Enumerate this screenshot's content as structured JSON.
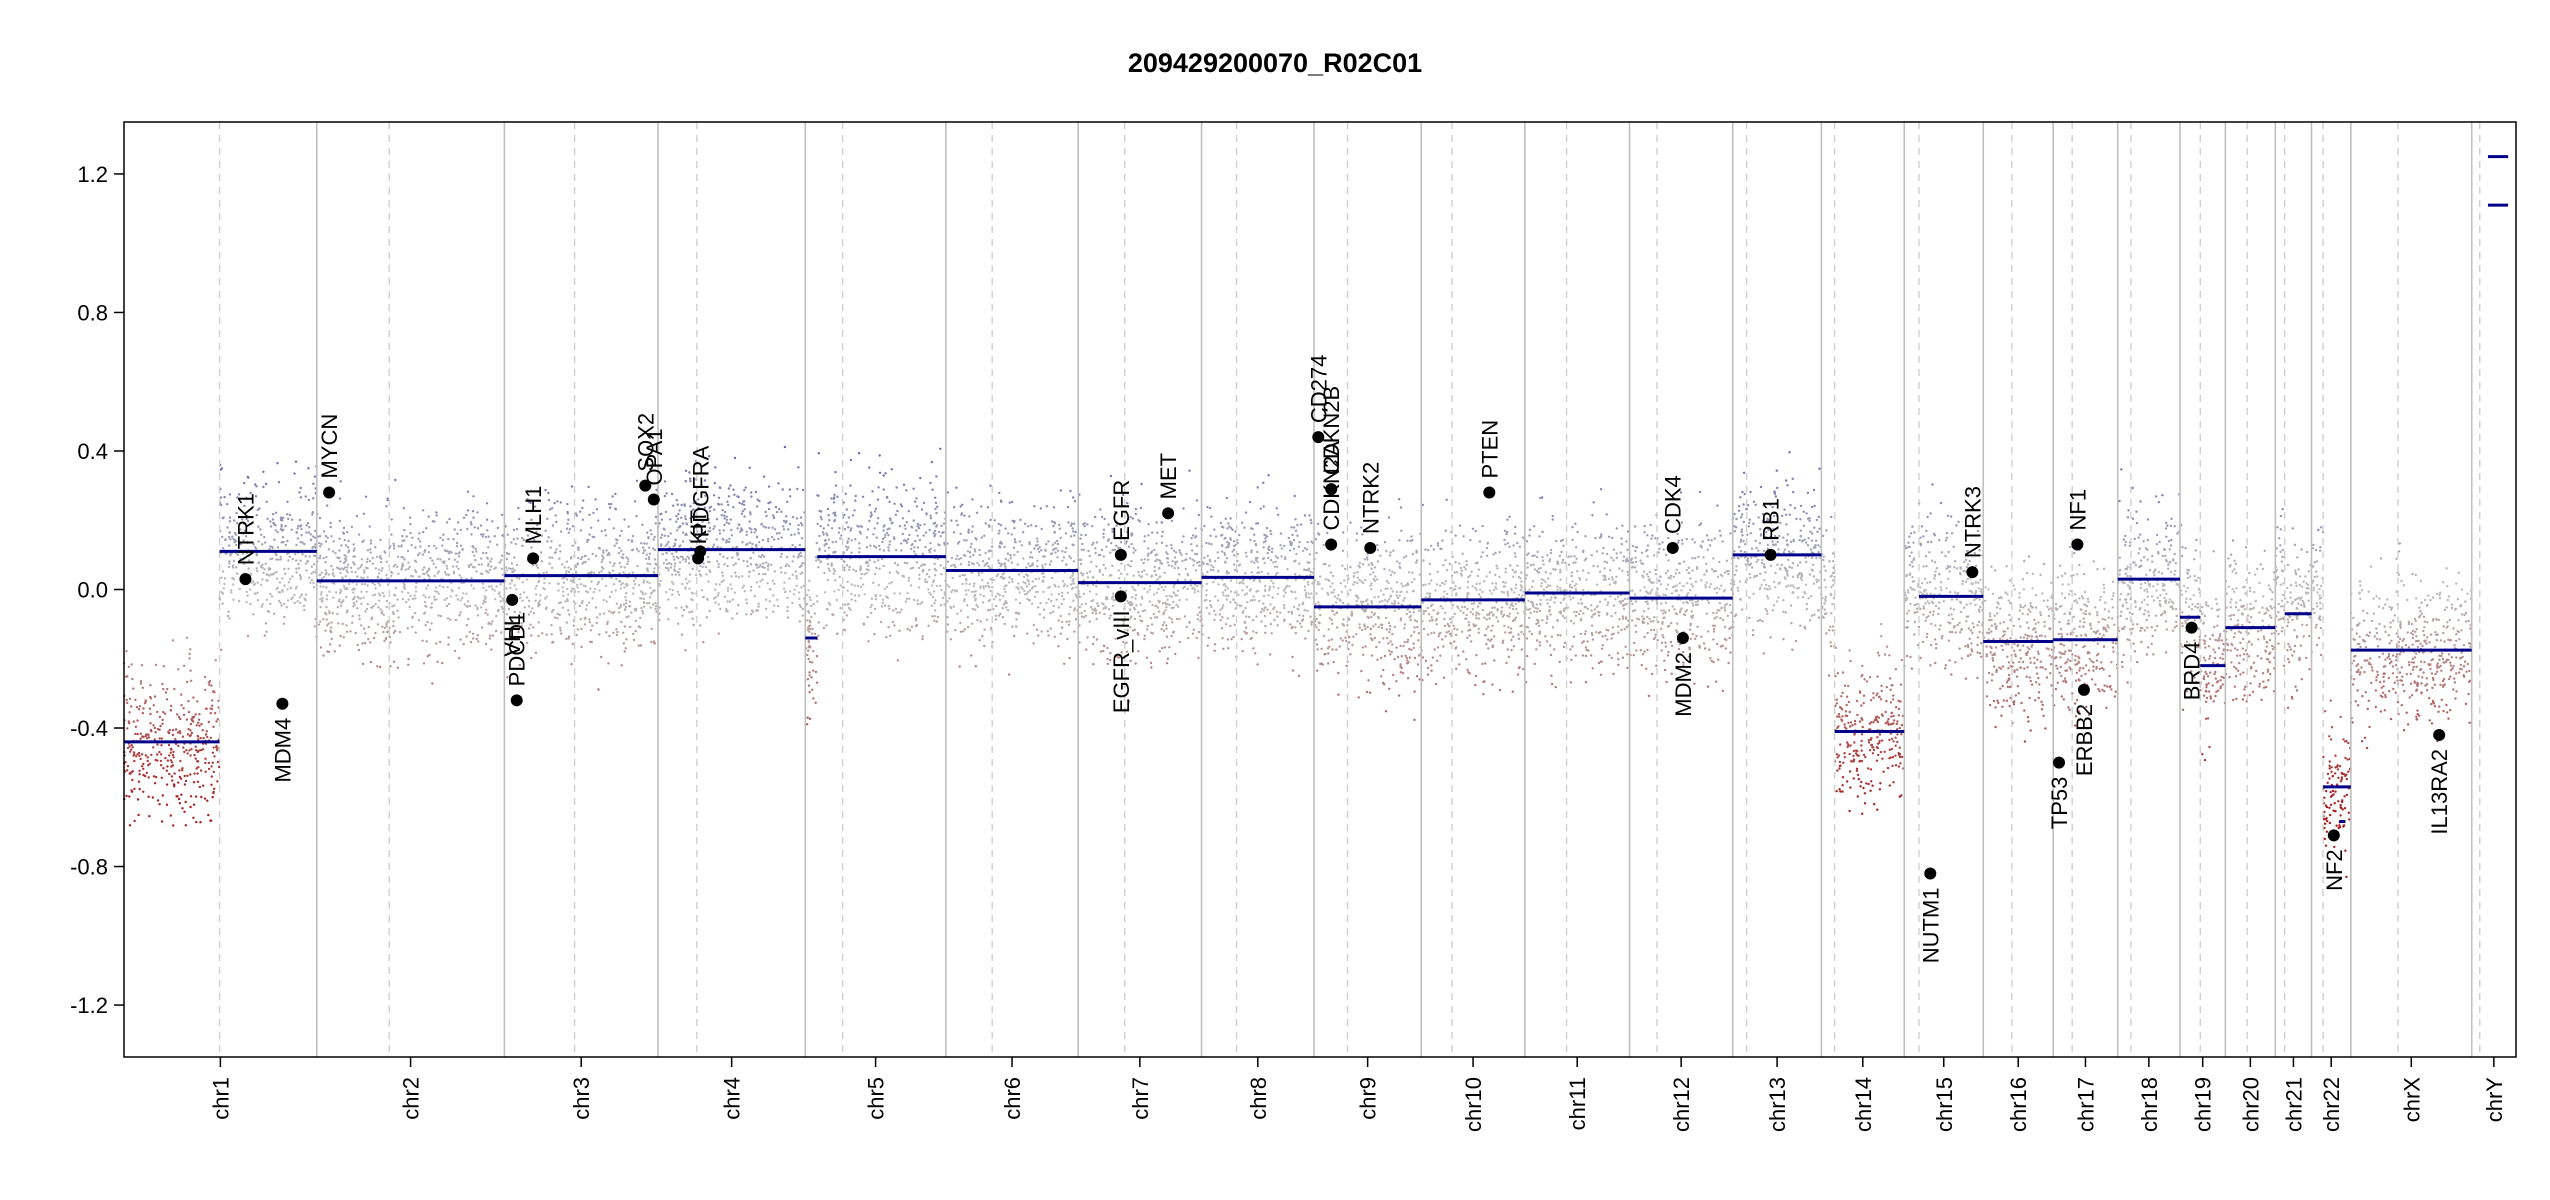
{
  "chart_data": {
    "type": "scatter",
    "title": "209429200070_R02C01",
    "xlabel": "",
    "ylabel": "",
    "ylim": [
      -1.35,
      1.35
    ],
    "y_ticks": [
      -1.2,
      -0.8,
      -0.4,
      0.0,
      0.4,
      0.8,
      1.2
    ],
    "y_tick_labels": [
      "-1.2",
      "-0.8",
      "-0.4",
      "0.0",
      "0.4",
      "0.8",
      "1.2"
    ],
    "grid": false,
    "colors": {
      "gain": "#3a3aa8",
      "neutral": "#bdbdbd",
      "loss": "#a81f1f",
      "segment": "#00008b",
      "chrom_border": "#bfbfbf",
      "centromere": "#cfcfcf"
    },
    "chromosomes": [
      {
        "name": "chr1",
        "start": 0,
        "end": 248.9,
        "centromere": 123.4
      },
      {
        "name": "chr2",
        "start": 248.9,
        "end": 491.1,
        "centromere": 342.5
      },
      {
        "name": "chr3",
        "start": 491.1,
        "end": 689.4,
        "centromere": 581.7
      },
      {
        "name": "chr4",
        "start": 689.4,
        "end": 879.6,
        "centromere": 739.6
      },
      {
        "name": "chr5",
        "start": 879.6,
        "end": 1061.1,
        "centromere": 927.8
      },
      {
        "name": "chr6",
        "start": 1061.1,
        "end": 1231.9,
        "centromere": 1120.9
      },
      {
        "name": "chr7",
        "start": 1231.9,
        "end": 1391.2,
        "centromere": 1292.0
      },
      {
        "name": "chr8",
        "start": 1391.2,
        "end": 1536.4,
        "centromere": 1436.4
      },
      {
        "name": "chr9",
        "start": 1536.4,
        "end": 1674.8,
        "centromere": 1579.6
      },
      {
        "name": "chr10",
        "start": 1674.8,
        "end": 1808.6,
        "centromere": 1714.6
      },
      {
        "name": "chr11",
        "start": 1808.6,
        "end": 1943.7,
        "centromere": 1862.4
      },
      {
        "name": "chr12",
        "start": 1943.7,
        "end": 2077.0,
        "centromere": 1979.2
      },
      {
        "name": "chr13",
        "start": 2077.0,
        "end": 2191.4,
        "centromere": 2094.9
      },
      {
        "name": "chr14",
        "start": 2191.4,
        "end": 2298.4,
        "centromere": 2208.5
      },
      {
        "name": "chr15",
        "start": 2298.4,
        "end": 2400.4,
        "centromere": 2317.4
      },
      {
        "name": "chr16",
        "start": 2400.4,
        "end": 2490.7,
        "centromere": 2437.3
      },
      {
        "name": "chr17",
        "start": 2490.7,
        "end": 2574.0,
        "centromere": 2515.2
      },
      {
        "name": "chr18",
        "start": 2574.0,
        "end": 2654.4,
        "centromere": 2591.0
      },
      {
        "name": "chr19",
        "start": 2654.4,
        "end": 2713.0,
        "centromere": 2680.6
      },
      {
        "name": "chr20",
        "start": 2713.0,
        "end": 2777.5,
        "centromere": 2741.1
      },
      {
        "name": "chr21",
        "start": 2777.5,
        "end": 2824.2,
        "centromere": 2789.5
      },
      {
        "name": "chr22",
        "start": 2824.2,
        "end": 2875.0,
        "centromere": 2839.1
      },
      {
        "name": "chrX",
        "start": 2875.0,
        "end": 3031.0,
        "centromere": 2935.8
      },
      {
        "name": "chrY",
        "start": 3031.0,
        "end": 3088.2,
        "centromere": 3041.4
      }
    ],
    "segments": [
      {
        "chrom": "chr1",
        "from": 0,
        "to": 123.4,
        "mean": -0.44
      },
      {
        "chrom": "chr1",
        "from": 123.4,
        "to": 248.9,
        "mean": 0.11
      },
      {
        "chrom": "chr2",
        "from": 248.9,
        "to": 491.1,
        "mean": 0.025
      },
      {
        "chrom": "chr3",
        "from": 491.1,
        "to": 689.4,
        "mean": 0.04
      },
      {
        "chrom": "chr4",
        "from": 689.4,
        "to": 879.6,
        "mean": 0.115
      },
      {
        "chrom": "chr5",
        "from": 879.6,
        "to": 895.0,
        "mean": -0.14
      },
      {
        "chrom": "chr5",
        "from": 895.0,
        "to": 1061.1,
        "mean": 0.095
      },
      {
        "chrom": "chr6",
        "from": 1061.1,
        "to": 1231.9,
        "mean": 0.055
      },
      {
        "chrom": "chr7",
        "from": 1231.9,
        "to": 1391.2,
        "mean": 0.02
      },
      {
        "chrom": "chr8",
        "from": 1391.2,
        "to": 1536.4,
        "mean": 0.035
      },
      {
        "chrom": "chr9",
        "from": 1536.4,
        "to": 1674.8,
        "mean": -0.05
      },
      {
        "chrom": "chr10",
        "from": 1674.8,
        "to": 1808.6,
        "mean": -0.03
      },
      {
        "chrom": "chr11",
        "from": 1808.6,
        "to": 1943.7,
        "mean": -0.01
      },
      {
        "chrom": "chr12",
        "from": 1943.7,
        "to": 2077.0,
        "mean": -0.025
      },
      {
        "chrom": "chr13",
        "from": 2077.0,
        "to": 2191.4,
        "mean": 0.1
      },
      {
        "chrom": "chr14",
        "from": 2208.5,
        "to": 2298.4,
        "mean": -0.41
      },
      {
        "chrom": "chr15",
        "from": 2317.4,
        "to": 2400.4,
        "mean": -0.02
      },
      {
        "chrom": "chr16",
        "from": 2400.4,
        "to": 2490.7,
        "mean": -0.15
      },
      {
        "chrom": "chr17",
        "from": 2490.7,
        "to": 2574.0,
        "mean": -0.145
      },
      {
        "chrom": "chr18",
        "from": 2574.0,
        "to": 2654.4,
        "mean": 0.03
      },
      {
        "chrom": "chr19",
        "from": 2654.4,
        "to": 2680.6,
        "mean": -0.08
      },
      {
        "chrom": "chr19",
        "from": 2680.6,
        "to": 2713.0,
        "mean": -0.22
      },
      {
        "chrom": "chr20",
        "from": 2713.0,
        "to": 2777.5,
        "mean": -0.11
      },
      {
        "chrom": "chr21",
        "from": 2789.5,
        "to": 2824.2,
        "mean": -0.07
      },
      {
        "chrom": "chr22",
        "from": 2839.1,
        "to": 2875.0,
        "mean": -0.57
      },
      {
        "chrom": "chr22",
        "from": 2860.0,
        "to": 2868.0,
        "mean": -0.67
      },
      {
        "chrom": "chrX",
        "from": 2875.0,
        "to": 3031.0,
        "mean": -0.175
      },
      {
        "chrom": "chrY",
        "from": 3052.0,
        "to": 3078.0,
        "mean": 1.25
      },
      {
        "chrom": "chrY",
        "from": 3052.0,
        "to": 3078.0,
        "mean": 1.11
      }
    ],
    "genes": [
      {
        "name": "NTRK1",
        "pos": 156.8,
        "value": 0.03,
        "label_side": "above"
      },
      {
        "name": "MDM4",
        "pos": 204.5,
        "value": -0.33,
        "label_side": "below"
      },
      {
        "name": "MYCN",
        "pos": 264.8,
        "value": 0.28,
        "label_side": "above"
      },
      {
        "name": "VHL",
        "pos": 501.2,
        "value": -0.03,
        "label_side": "below"
      },
      {
        "name": "PDCD1",
        "pos": 507.0,
        "value": -0.32,
        "label_side": "above"
      },
      {
        "name": "MLH1",
        "pos": 528.2,
        "value": 0.09,
        "label_side": "above"
      },
      {
        "name": "SOX2",
        "pos": 673.0,
        "value": 0.3,
        "label_side": "above"
      },
      {
        "name": "OPA1",
        "pos": 684.0,
        "value": 0.26,
        "label_side": "above"
      },
      {
        "name": "KIT",
        "pos": 741.2,
        "value": 0.09,
        "label_side": "above"
      },
      {
        "name": "PDGFRA",
        "pos": 744.0,
        "value": 0.11,
        "label_side": "above"
      },
      {
        "name": "EGFR",
        "pos": 1287.0,
        "value": 0.1,
        "label_side": "above"
      },
      {
        "name": "EGFR_vIII",
        "pos": 1287.0,
        "value": -0.02,
        "label_side": "below"
      },
      {
        "name": "MET",
        "pos": 1348.0,
        "value": 0.22,
        "label_side": "above"
      },
      {
        "name": "CDKN2A",
        "pos": 1558.5,
        "value": 0.13,
        "label_side": "above"
      },
      {
        "name": "CDKN2B",
        "pos": 1558.6,
        "value": 0.29,
        "label_side": "above"
      },
      {
        "name": "CD274",
        "pos": 1541.9,
        "value": 0.44,
        "label_side": "above"
      },
      {
        "name": "NTRK2",
        "pos": 1609.0,
        "value": 0.12,
        "label_side": "above"
      },
      {
        "name": "PTEN",
        "pos": 1762.7,
        "value": 0.28,
        "label_side": "above"
      },
      {
        "name": "CDK4",
        "pos": 1999.5,
        "value": 0.12,
        "label_side": "above"
      },
      {
        "name": "MDM2",
        "pos": 2012.6,
        "value": -0.14,
        "label_side": "below"
      },
      {
        "name": "RB1",
        "pos": 2125.9,
        "value": 0.1,
        "label_side": "above"
      },
      {
        "name": "NUTM1",
        "pos": 2332.0,
        "value": -0.82,
        "label_side": "below"
      },
      {
        "name": "NTRK3",
        "pos": 2386.3,
        "value": 0.05,
        "label_side": "above"
      },
      {
        "name": "TP53",
        "pos": 2498.2,
        "value": -0.5,
        "label_side": "below"
      },
      {
        "name": "NF1",
        "pos": 2521.9,
        "value": 0.13,
        "label_side": "above"
      },
      {
        "name": "ERBB2",
        "pos": 2530.4,
        "value": -0.29,
        "label_side": "below"
      },
      {
        "name": "BRD4",
        "pos": 2669.4,
        "value": -0.11,
        "label_side": "below"
      },
      {
        "name": "NF2",
        "pos": 2853.0,
        "value": -0.71,
        "label_side": "below"
      },
      {
        "name": "IL13RA2",
        "pos": 2989.0,
        "value": -0.42,
        "label_side": "below"
      }
    ]
  }
}
